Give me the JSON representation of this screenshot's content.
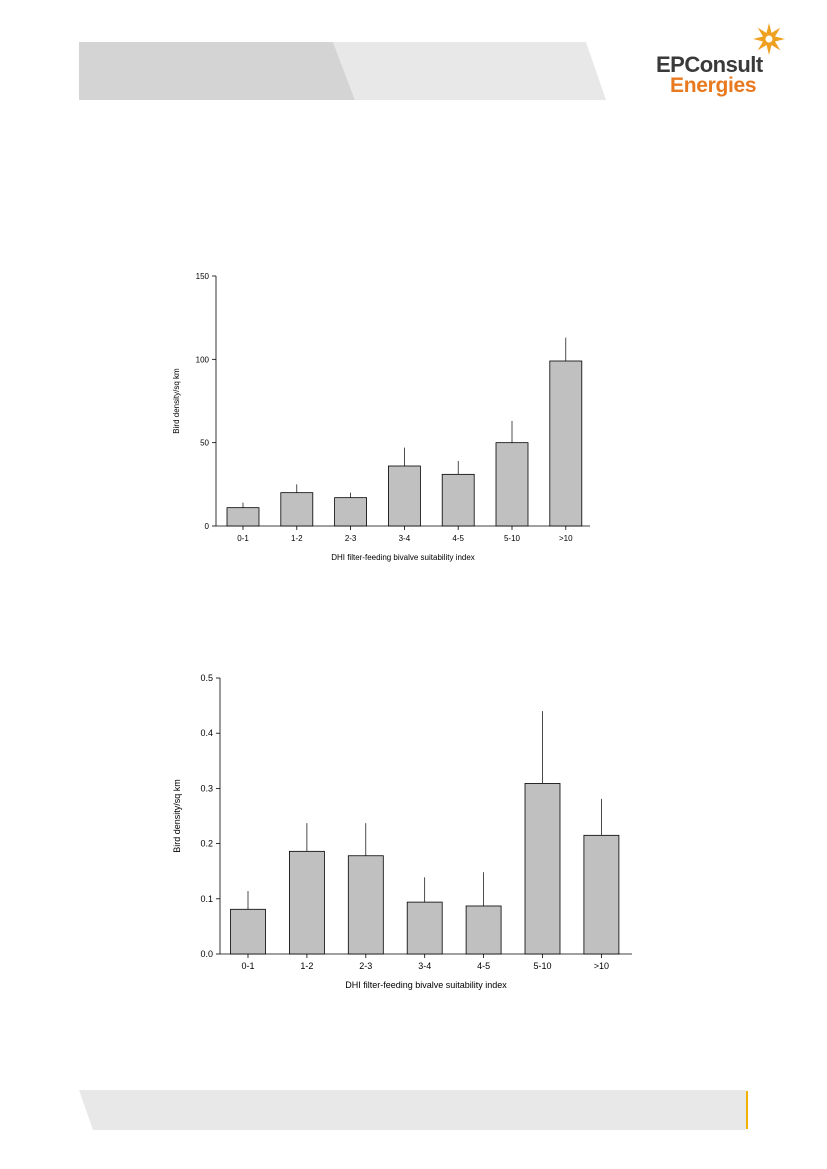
{
  "brand": {
    "name_line1": "EPConsult",
    "name_line2": "Energies",
    "colors": {
      "dark": "#3a3a3a",
      "orange": "#e8791f",
      "star": "#f0a020",
      "band_dark": "#d4d4d4",
      "band_light": "#e8e8e8",
      "footer_accent": "#f2b100"
    }
  },
  "chart_data": [
    {
      "type": "bar",
      "categories": [
        "0-1",
        "1-2",
        "2-3",
        "3-4",
        "4-5",
        "5-10",
        ">10"
      ],
      "values": [
        11,
        20,
        17,
        36,
        31,
        50,
        99
      ],
      "error_upper": [
        14,
        25,
        20,
        47,
        39,
        63,
        113
      ],
      "xlabel": "DHI filter-feeding bivalve suitability index",
      "ylabel": "Bird density/sq km",
      "ylim": [
        0,
        150
      ],
      "yticks": [
        "0",
        "50",
        "100",
        "150"
      ],
      "bar_color": "#c0c0c0",
      "grid": false
    },
    {
      "type": "bar",
      "categories": [
        "0-1",
        "1-2",
        "2-3",
        "3-4",
        "4-5",
        "5-10",
        ">10"
      ],
      "values": [
        0.081,
        0.186,
        0.178,
        0.094,
        0.087,
        0.309,
        0.215
      ],
      "error_upper": [
        0.114,
        0.237,
        0.237,
        0.139,
        0.148,
        0.44,
        0.281
      ],
      "xlabel": "DHI filter-feeding bivalve suitability index",
      "ylabel": "Bird density/sq km",
      "ylim": [
        0,
        0.5
      ],
      "yticks": [
        "0.0",
        "0.1",
        "0.2",
        "0.3",
        "0.4",
        "0.5"
      ],
      "bar_color": "#c0c0c0",
      "grid": false
    }
  ]
}
